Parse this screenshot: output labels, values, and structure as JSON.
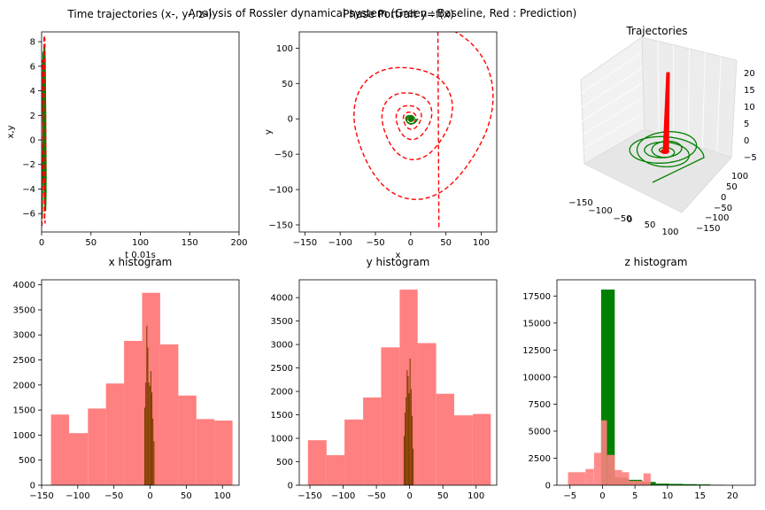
{
  "suptitle": "Analysis of Rossler dynamical system (Green : Baseline, Red : Prediction)",
  "colors": {
    "baseline": "#008000",
    "prediction": "#ff0000",
    "overlap": "#804000",
    "pred_hist": "#ff8080"
  },
  "chart_data": [
    {
      "type": "line",
      "title": "Time trajectories (x-, y-, z-)",
      "xlabel": "t 0.01s",
      "ylabel": "x,y",
      "xlim": [
        0,
        200
      ],
      "ylim": [
        -7.5,
        8.8
      ],
      "xticks": [
        0,
        50,
        100,
        150,
        200
      ],
      "yticks": [
        -6,
        -4,
        -2,
        0,
        2,
        4,
        6,
        8
      ],
      "series": [
        {
          "color": "#008000",
          "style": "solid",
          "x": [
            0.5,
            1.5,
            2.5,
            3,
            3.5,
            4,
            4.5,
            4,
            3.5,
            3,
            2.5,
            2,
            1.5,
            1,
            2,
            3,
            4,
            4.5
          ],
          "y": [
            -6.4,
            1.5,
            7.5,
            7.8,
            6.5,
            2,
            -3,
            -5.5,
            -4,
            0,
            4,
            6.8,
            7.2,
            3,
            -2,
            -5,
            -5.8,
            -4
          ]
        },
        {
          "color": "#ff0000",
          "style": "dashed",
          "x": [
            0.3,
            1,
            1.8,
            2.5,
            3.2,
            3.8,
            4.2,
            3.6,
            3,
            2.4,
            1.8,
            1.2,
            0.8,
            1.5,
            2.3,
            3,
            3.6
          ],
          "y": [
            -7,
            -2,
            3,
            8.5,
            8.2,
            4,
            -1,
            -5,
            -6.5,
            -3,
            1,
            5,
            6.5,
            2,
            -3,
            -6,
            -6.8
          ]
        }
      ]
    },
    {
      "type": "line",
      "title": "Phase Portrait y=f(x)",
      "xlabel": "x",
      "ylabel": "y",
      "xlim": [
        -158,
        122
      ],
      "ylim": [
        -160,
        123
      ],
      "xticks": [
        -150,
        -100,
        -50,
        0,
        50,
        100
      ],
      "yticks": [
        -150,
        -100,
        -50,
        0,
        50,
        100
      ],
      "series": [
        {
          "color": "#ff0000",
          "style": "dashed",
          "spiral": {
            "start_radius": 2,
            "end_radius": 136,
            "turns": 6.2,
            "aspect": [
              0.95,
              1.07
            ],
            "end_point": [
              40,
              -155
            ]
          }
        },
        {
          "color": "#008000",
          "style": "solid",
          "spiral": {
            "start_radius": 1,
            "end_radius": 10,
            "turns": 3,
            "aspect": [
              1.0,
              0.8
            ]
          }
        }
      ]
    },
    {
      "type": "line",
      "title": "Trajectories",
      "projection": "3d",
      "xticks": [
        -150,
        -100,
        -50,
        0,
        50,
        100
      ],
      "yticks": [
        -150,
        -100,
        -50,
        0,
        50,
        100
      ],
      "zticks": [
        -5,
        0,
        5,
        10,
        15,
        20
      ],
      "series": [
        {
          "color": "#008000",
          "style": "solid",
          "note": "baseline spiral in x-y plane"
        },
        {
          "color": "#ff0000",
          "style": "solid",
          "note": "prediction spike along z"
        }
      ]
    },
    {
      "type": "bar",
      "title": "x histogram",
      "xlim": [
        -150,
        123
      ],
      "ylim": [
        0,
        4100
      ],
      "xticks": [
        -150,
        -100,
        -50,
        0,
        50,
        100
      ],
      "yticks": [
        0,
        500,
        1000,
        1500,
        2000,
        2500,
        3000,
        3500,
        4000
      ],
      "series": [
        {
          "name": "prediction",
          "color": "#ff8080",
          "edges": [
            -137,
            -112,
            -86,
            -61,
            -36,
            -11,
            14,
            39,
            64,
            89,
            114
          ],
          "values": [
            1410,
            1040,
            1530,
            2030,
            2880,
            3840,
            2810,
            1790,
            1320,
            1290
          ]
        },
        {
          "name": "baseline",
          "color": "#804000",
          "edges": [
            -8,
            -6.6,
            -5.2,
            -3.8,
            -2.4,
            -1,
            0.4,
            1.8,
            3.2,
            4.6,
            6
          ],
          "values": [
            1550,
            2050,
            3180,
            2750,
            2050,
            1980,
            2280,
            1850,
            1330,
            880
          ]
        }
      ]
    },
    {
      "type": "bar",
      "title": "y histogram",
      "xlim": [
        -166,
        131
      ],
      "ylim": [
        0,
        4380
      ],
      "xticks": [
        -150,
        -100,
        -50,
        0,
        50,
        100
      ],
      "yticks": [
        0,
        500,
        1000,
        1500,
        2000,
        2500,
        3000,
        3500,
        4000
      ],
      "series": [
        {
          "name": "prediction",
          "color": "#ff8080",
          "edges": [
            -153,
            -125,
            -98,
            -70,
            -43,
            -15,
            12,
            40,
            67,
            95,
            122
          ],
          "values": [
            960,
            640,
            1400,
            1870,
            2940,
            4170,
            3030,
            1950,
            1490,
            1520
          ]
        },
        {
          "name": "baseline",
          "color": "#804000",
          "edges": [
            -9,
            -7.5,
            -6,
            -4.5,
            -3,
            -1.5,
            0,
            1.5,
            3,
            4.5,
            6
          ],
          "values": [
            1050,
            1550,
            1880,
            2450,
            2330,
            1960,
            2700,
            2050,
            1480,
            780
          ]
        }
      ]
    },
    {
      "type": "bar",
      "title": "z histogram",
      "xlim": [
        -7,
        23.5
      ],
      "ylim": [
        0,
        19000
      ],
      "xticks": [
        -5,
        0,
        5,
        10,
        15,
        20
      ],
      "yticks": [
        0,
        2500,
        5000,
        7500,
        10000,
        12500,
        15000,
        17500
      ],
      "series": [
        {
          "name": "baseline",
          "color": "#008000",
          "edges": [
            -0.2,
            1.9,
            4.0,
            6.1,
            8.2,
            10.3,
            12.4,
            14.5,
            16.6,
            18.7
          ],
          "values": [
            18100,
            700,
            500,
            300,
            150,
            120,
            100,
            70,
            40
          ]
        },
        {
          "name": "prediction",
          "color": "#ff8080",
          "edges": [
            -5.3,
            -2.6,
            -1.3,
            -0.2,
            0.7,
            1.9,
            3.0,
            4.1,
            5.2,
            6.3,
            7.4
          ],
          "values": [
            1200,
            1500,
            3000,
            6000,
            2800,
            1400,
            1200,
            400,
            400,
            1100
          ]
        }
      ]
    }
  ]
}
